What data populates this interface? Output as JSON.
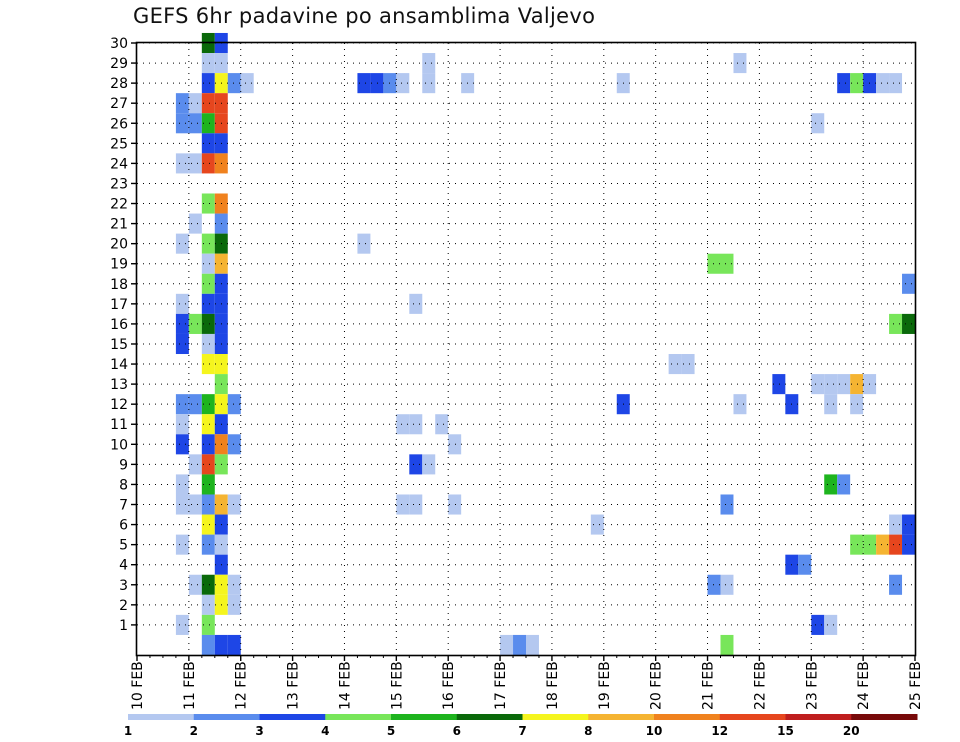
{
  "chart_data": {
    "type": "heatmap",
    "title": "GEFS 6hr padavine po ansamblima Valjevo",
    "x_tick_labels": [
      "10 FEB",
      "11 FEB",
      "12 FEB",
      "13 FEB",
      "14 FEB",
      "15 FEB",
      "16 FEB",
      "17 FEB",
      "18 FEB",
      "19 FEB",
      "20 FEB",
      "21 FEB",
      "22 FEB",
      "23 FEB",
      "24 FEB",
      "25 FEB"
    ],
    "x_range_days": [
      10,
      25
    ],
    "time_step_hours": 6,
    "y_tick_labels": [
      "1",
      "2",
      "3",
      "4",
      "5",
      "6",
      "7",
      "8",
      "9",
      "10",
      "11",
      "12",
      "13",
      "14",
      "15",
      "16",
      "17",
      "18",
      "19",
      "20",
      "21",
      "22",
      "23",
      "24",
      "25",
      "26",
      "27",
      "28",
      "29",
      "30"
    ],
    "y_range": [
      0,
      30
    ],
    "grid": true,
    "legend_position": "bottom",
    "legend_levels": [
      "1",
      "2",
      "3",
      "4",
      "5",
      "6",
      "7",
      "8",
      "10",
      "12",
      "15",
      "20"
    ],
    "legend_colors": [
      "#b4c8f0",
      "#5a8ced",
      "#1e46e6",
      "#78e65a",
      "#1eb41e",
      "#0a690a",
      "#f5f51e",
      "#f5b432",
      "#f0821e",
      "#e6461e",
      "#bf1e1e",
      "#780a0a"
    ],
    "cells_note": "each cell: [member, day-of-February at start of 6h step, color index into legend_colors]",
    "cells": [
      [
        30,
        11.25,
        5
      ],
      [
        30,
        11.5,
        2
      ],
      [
        29,
        11.25,
        0
      ],
      [
        29,
        11.5,
        0
      ],
      [
        29,
        15.5,
        0
      ],
      [
        29,
        21.5,
        0
      ],
      [
        28,
        11.25,
        2
      ],
      [
        28,
        11.5,
        6
      ],
      [
        28,
        11.75,
        1
      ],
      [
        28,
        12.0,
        0
      ],
      [
        28,
        14.25,
        2
      ],
      [
        28,
        14.5,
        2
      ],
      [
        28,
        14.75,
        1
      ],
      [
        28,
        15.0,
        0
      ],
      [
        28,
        15.5,
        0
      ],
      [
        28,
        16.25,
        0
      ],
      [
        28,
        19.25,
        0
      ],
      [
        28,
        23.5,
        2
      ],
      [
        28,
        23.75,
        3
      ],
      [
        28,
        24.0,
        2
      ],
      [
        28,
        24.25,
        0
      ],
      [
        28,
        24.5,
        0
      ],
      [
        27,
        10.75,
        1
      ],
      [
        27,
        11.0,
        0
      ],
      [
        27,
        11.25,
        9
      ],
      [
        27,
        11.5,
        9
      ],
      [
        26,
        10.75,
        1
      ],
      [
        26,
        11.0,
        1
      ],
      [
        26,
        11.25,
        4
      ],
      [
        26,
        11.5,
        9
      ],
      [
        26,
        23.0,
        0
      ],
      [
        25,
        11.25,
        2
      ],
      [
        25,
        11.5,
        2
      ],
      [
        24,
        10.75,
        0
      ],
      [
        24,
        11.0,
        0
      ],
      [
        24,
        11.25,
        9
      ],
      [
        24,
        11.5,
        8
      ],
      [
        22,
        11.25,
        3
      ],
      [
        22,
        11.5,
        8
      ],
      [
        21,
        11.0,
        0
      ],
      [
        21,
        11.5,
        1
      ],
      [
        20,
        10.75,
        0
      ],
      [
        20,
        11.25,
        3
      ],
      [
        20,
        11.5,
        5
      ],
      [
        20,
        14.25,
        0
      ],
      [
        19,
        11.25,
        0
      ],
      [
        19,
        11.5,
        7
      ],
      [
        19,
        21.0,
        3
      ],
      [
        19,
        21.25,
        3
      ],
      [
        18,
        11.25,
        3
      ],
      [
        18,
        11.5,
        2
      ],
      [
        18,
        24.75,
        1
      ],
      [
        17,
        10.75,
        0
      ],
      [
        17,
        11.25,
        2
      ],
      [
        17,
        11.5,
        2
      ],
      [
        17,
        15.25,
        0
      ],
      [
        16,
        10.75,
        2
      ],
      [
        16,
        11.0,
        3
      ],
      [
        16,
        11.25,
        5
      ],
      [
        16,
        11.5,
        2
      ],
      [
        16,
        24.5,
        3
      ],
      [
        16,
        24.75,
        5
      ],
      [
        15,
        10.75,
        2
      ],
      [
        15,
        11.25,
        0
      ],
      [
        15,
        11.5,
        2
      ],
      [
        14,
        11.25,
        6
      ],
      [
        14,
        11.5,
        6
      ],
      [
        14,
        20.25,
        0
      ],
      [
        14,
        20.5,
        0
      ],
      [
        13,
        11.5,
        3
      ],
      [
        13,
        22.25,
        2
      ],
      [
        13,
        23.0,
        0
      ],
      [
        13,
        23.25,
        0
      ],
      [
        13,
        23.5,
        0
      ],
      [
        13,
        23.75,
        7
      ],
      [
        13,
        24.0,
        0
      ],
      [
        12,
        10.75,
        1
      ],
      [
        12,
        11.0,
        1
      ],
      [
        12,
        11.25,
        4
      ],
      [
        12,
        11.5,
        6
      ],
      [
        12,
        11.75,
        1
      ],
      [
        12,
        19.25,
        2
      ],
      [
        12,
        21.5,
        0
      ],
      [
        12,
        22.5,
        2
      ],
      [
        12,
        23.25,
        0
      ],
      [
        12,
        23.75,
        0
      ],
      [
        11,
        10.75,
        0
      ],
      [
        11,
        11.25,
        6
      ],
      [
        11,
        11.5,
        2
      ],
      [
        11,
        15.0,
        0
      ],
      [
        11,
        15.25,
        0
      ],
      [
        11,
        15.75,
        0
      ],
      [
        10,
        10.75,
        2
      ],
      [
        10,
        11.25,
        2
      ],
      [
        10,
        11.5,
        8
      ],
      [
        10,
        11.75,
        1
      ],
      [
        10,
        16.0,
        0
      ],
      [
        9,
        11.0,
        0
      ],
      [
        9,
        11.25,
        9
      ],
      [
        9,
        11.5,
        3
      ],
      [
        9,
        15.25,
        2
      ],
      [
        9,
        15.5,
        0
      ],
      [
        8,
        10.75,
        0
      ],
      [
        8,
        11.25,
        4
      ],
      [
        8,
        23.25,
        4
      ],
      [
        8,
        23.5,
        1
      ],
      [
        7,
        10.75,
        0
      ],
      [
        7,
        11.0,
        0
      ],
      [
        7,
        11.25,
        1
      ],
      [
        7,
        11.5,
        7
      ],
      [
        7,
        11.75,
        0
      ],
      [
        7,
        15.0,
        0
      ],
      [
        7,
        15.25,
        0
      ],
      [
        7,
        16.0,
        0
      ],
      [
        7,
        21.25,
        1
      ],
      [
        6,
        11.25,
        6
      ],
      [
        6,
        11.5,
        2
      ],
      [
        6,
        18.75,
        0
      ],
      [
        6,
        24.5,
        0
      ],
      [
        6,
        24.75,
        2
      ],
      [
        5,
        10.75,
        0
      ],
      [
        5,
        11.25,
        1
      ],
      [
        5,
        11.5,
        0
      ],
      [
        5,
        23.75,
        3
      ],
      [
        5,
        24.0,
        3
      ],
      [
        5,
        24.25,
        7
      ],
      [
        5,
        24.5,
        9
      ],
      [
        5,
        24.75,
        2
      ],
      [
        4,
        11.5,
        2
      ],
      [
        4,
        22.5,
        2
      ],
      [
        4,
        22.75,
        1
      ],
      [
        3,
        11.0,
        0
      ],
      [
        3,
        11.25,
        5
      ],
      [
        3,
        11.5,
        6
      ],
      [
        3,
        11.75,
        0
      ],
      [
        3,
        21.0,
        1
      ],
      [
        3,
        21.25,
        0
      ],
      [
        3,
        24.5,
        1
      ],
      [
        2,
        11.25,
        0
      ],
      [
        2,
        11.5,
        6
      ],
      [
        2,
        11.75,
        0
      ],
      [
        1,
        10.75,
        0
      ],
      [
        1,
        11.25,
        3
      ],
      [
        1,
        23.0,
        2
      ],
      [
        1,
        23.25,
        0
      ],
      [
        0,
        11.25,
        1
      ],
      [
        0,
        11.5,
        2
      ],
      [
        0,
        11.75,
        2
      ],
      [
        0,
        17.0,
        0
      ],
      [
        0,
        17.25,
        1
      ],
      [
        0,
        17.5,
        0
      ],
      [
        0,
        21.25,
        3
      ]
    ]
  }
}
